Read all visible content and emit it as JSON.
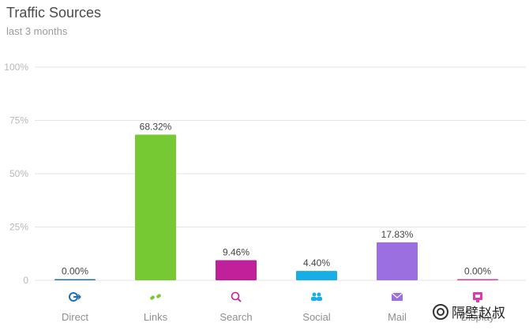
{
  "header": {
    "title": "Traffic Sources",
    "subtitle": "last 3 months"
  },
  "watermark": {
    "text": "隔壁赵叔"
  },
  "colors": {
    "grid": "#e4e4e4",
    "axis_text": "#b8b8b8",
    "value_text": "#444444",
    "category_text": "#8e8e8e"
  },
  "chart_data": {
    "type": "bar",
    "title": "Traffic Sources",
    "subtitle": "last 3 months",
    "categories": [
      "Direct",
      "Links",
      "Search",
      "Social",
      "Mail",
      "Display"
    ],
    "values": [
      0.0,
      68.32,
      9.46,
      4.4,
      17.83,
      0.0
    ],
    "value_labels": [
      "0.00%",
      "68.32%",
      "9.46%",
      "4.40%",
      "17.83%",
      "0.00%"
    ],
    "bar_colors": [
      "#1e6fb8",
      "#76c932",
      "#c0209a",
      "#17aee6",
      "#9b6fe0",
      "#e03aa6"
    ],
    "icons": [
      "direct-icon",
      "links-icon",
      "search-icon",
      "social-icon",
      "mail-icon",
      "display-icon"
    ],
    "yticks": [
      "0",
      "25%",
      "50%",
      "75%",
      "100%"
    ],
    "ytick_values": [
      0,
      25,
      50,
      75,
      100
    ],
    "ylim": [
      0,
      100
    ],
    "xlabel": "",
    "ylabel": "",
    "grid": true,
    "legend": "none"
  }
}
